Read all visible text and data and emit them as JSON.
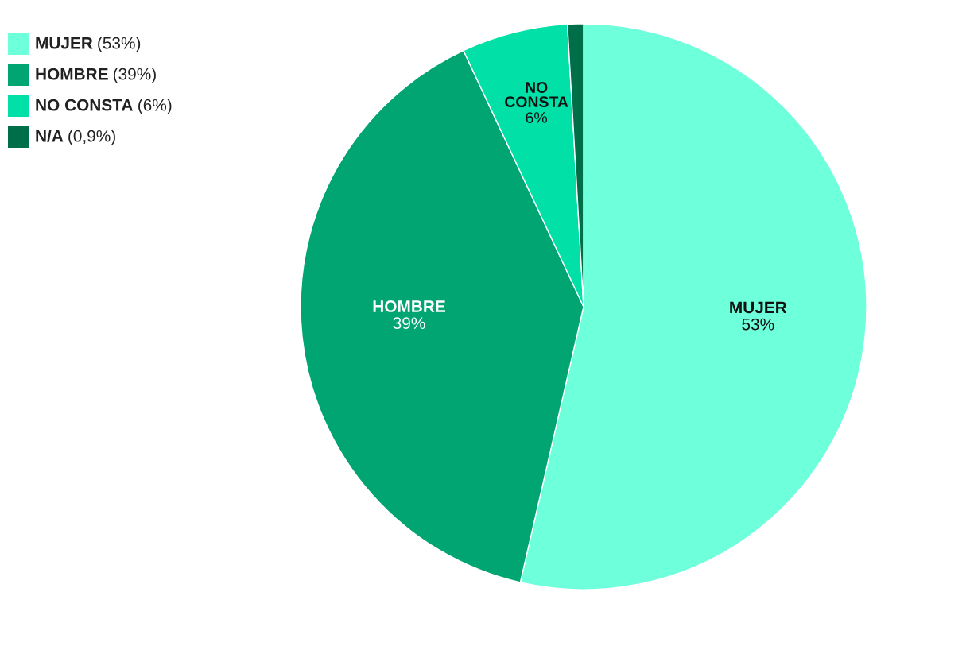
{
  "chart_data": {
    "type": "pie",
    "categories": [
      "MUJER",
      "HOMBRE",
      "NO CONSTA",
      "N/A"
    ],
    "values": [
      53,
      39,
      6,
      0.9
    ],
    "value_labels": [
      "(53%)",
      "(39%)",
      "(6%)",
      "(0,9%)"
    ],
    "annotations": [
      "53%",
      "39%",
      "6%"
    ],
    "colors": [
      "#6effdb",
      "#00a572",
      "#00e0a7",
      "#006e48"
    ],
    "legend": "top left"
  }
}
